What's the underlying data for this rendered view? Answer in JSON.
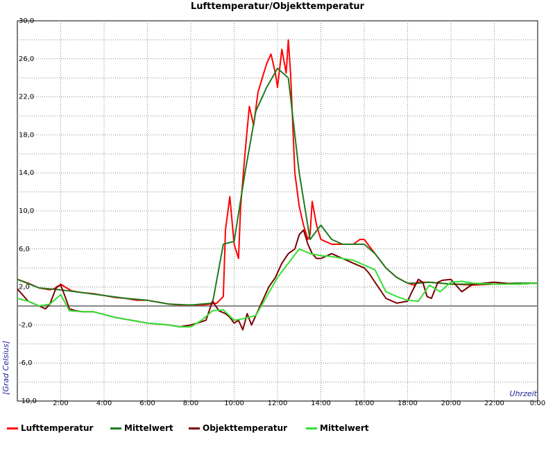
{
  "chart_data": {
    "type": "line",
    "title": "Lufttemperatur/Objekttemperatur",
    "xlabel": "Uhrzeit",
    "ylabel": "[Grad Celsius]",
    "xlim": [
      0,
      24
    ],
    "ylim": [
      -10,
      30
    ],
    "grid": true,
    "legend_position": "bottom",
    "y_ticks": [
      "-10,0",
      "-6,0",
      "-2,0",
      "2,0",
      "6,0",
      "10,0",
      "14,0",
      "18,0",
      "22,0",
      "26,0",
      "30,0"
    ],
    "x_ticks": [
      "2:00",
      "4:00",
      "6:00",
      "8:00",
      "10:00",
      "12:00",
      "14:00",
      "16:00",
      "18:00",
      "20:00",
      "22:00",
      "0:00"
    ],
    "series": [
      {
        "name": "Lufttemperatur",
        "color": "#ff0000",
        "x": [
          0,
          0.5,
          1.0,
          1.5,
          1.8,
          2.0,
          2.2,
          2.5,
          3.0,
          3.5,
          4.0,
          4.5,
          5.0,
          5.5,
          6.0,
          6.5,
          7.0,
          7.5,
          8.0,
          8.5,
          8.9,
          9.2,
          9.5,
          9.6,
          9.8,
          10.0,
          10.2,
          10.3,
          10.5,
          10.7,
          10.9,
          11.1,
          11.3,
          11.5,
          11.7,
          11.9,
          12.0,
          12.2,
          12.4,
          12.5,
          12.6,
          12.8,
          13.0,
          13.2,
          13.4,
          13.5,
          13.6,
          13.8,
          14.0,
          14.5,
          15.0,
          15.3,
          15.5,
          15.8,
          16.0,
          16.5,
          17.0,
          17.5,
          18.0,
          18.3,
          18.5,
          19.0,
          19.5,
          20.0,
          21.0,
          22.0,
          23.0,
          24.0
        ],
        "y": [
          2.8,
          2.4,
          1.9,
          1.7,
          1.9,
          2.3,
          2.0,
          1.6,
          1.4,
          1.3,
          1.1,
          0.9,
          0.8,
          0.6,
          0.6,
          0.4,
          0.2,
          0.1,
          0.1,
          0.1,
          0.2,
          0.3,
          1.0,
          8.0,
          11.5,
          6.5,
          5.0,
          10.5,
          16.0,
          21.0,
          19.0,
          22.5,
          24.0,
          25.5,
          26.5,
          24.5,
          23.0,
          27.0,
          24.5,
          28.0,
          24.5,
          14.0,
          10.5,
          8.5,
          7.0,
          7.5,
          11.0,
          8.5,
          7.0,
          6.5,
          6.5,
          6.5,
          6.5,
          7.0,
          7.0,
          5.5,
          4.0,
          3.0,
          2.4,
          2.2,
          2.5,
          2.5,
          2.4,
          2.3,
          2.2,
          2.3,
          2.4,
          2.4
        ]
      },
      {
        "name": "Mittelwert",
        "color": "#1e7a1e",
        "x": [
          0,
          1.0,
          2.0,
          3.0,
          4.0,
          5.0,
          6.0,
          7.0,
          8.0,
          9.0,
          9.5,
          10.0,
          10.5,
          11.0,
          11.5,
          12.0,
          12.5,
          13.0,
          13.5,
          14.0,
          14.5,
          15.0,
          15.5,
          16.0,
          16.5,
          17.0,
          17.5,
          18.0,
          18.5,
          19.0,
          19.5,
          20.0,
          21.0,
          22.0,
          23.0,
          24.0
        ],
        "y": [
          2.8,
          1.9,
          1.7,
          1.4,
          1.1,
          0.8,
          0.6,
          0.2,
          0.1,
          0.3,
          6.5,
          6.8,
          14.0,
          20.5,
          23.0,
          25.0,
          24.0,
          14.0,
          7.0,
          8.5,
          7.0,
          6.5,
          6.5,
          6.5,
          5.5,
          4.0,
          3.0,
          2.4,
          2.4,
          2.5,
          2.4,
          2.3,
          2.3,
          2.3,
          2.4,
          2.4
        ]
      },
      {
        "name": "Objekttemperatur",
        "color": "#7a0000",
        "x": [
          0,
          0.5,
          1.0,
          1.3,
          1.5,
          1.8,
          2.0,
          2.2,
          2.4,
          2.7,
          3.0,
          3.5,
          4.0,
          4.5,
          5.0,
          5.5,
          6.0,
          6.5,
          7.0,
          7.5,
          8.0,
          8.3,
          8.7,
          9.0,
          9.3,
          9.6,
          9.8,
          10.0,
          10.2,
          10.4,
          10.6,
          10.8,
          11.0,
          11.3,
          11.6,
          11.9,
          12.2,
          12.5,
          12.8,
          13.0,
          13.2,
          13.4,
          13.6,
          13.8,
          14.0,
          14.5,
          15.0,
          15.5,
          16.0,
          16.2,
          16.5,
          17.0,
          17.5,
          18.0,
          18.2,
          18.5,
          18.7,
          18.9,
          19.1,
          19.4,
          19.6,
          20.0,
          20.5,
          21.0,
          22.0,
          23.0,
          24.0
        ],
        "y": [
          1.8,
          0.5,
          0.0,
          -0.3,
          0.2,
          2.0,
          2.2,
          1.0,
          -0.3,
          -0.5,
          -0.6,
          -0.6,
          -0.9,
          -1.2,
          -1.4,
          -1.6,
          -1.8,
          -1.9,
          -2.0,
          -2.2,
          -2.0,
          -1.8,
          -1.5,
          0.5,
          -0.5,
          -0.8,
          -1.2,
          -1.8,
          -1.5,
          -2.5,
          -0.8,
          -2.0,
          -1.0,
          0.5,
          2.0,
          3.0,
          4.5,
          5.5,
          6.0,
          7.5,
          8.0,
          6.5,
          5.5,
          5.0,
          5.0,
          5.5,
          5.0,
          4.5,
          4.0,
          3.5,
          2.5,
          0.8,
          0.3,
          0.5,
          1.5,
          2.8,
          2.5,
          1.0,
          0.8,
          2.5,
          2.7,
          2.8,
          1.5,
          2.3,
          2.5,
          2.3,
          2.4
        ]
      },
      {
        "name": "Mittelwert",
        "color": "#33e033",
        "x": [
          0,
          0.5,
          1.0,
          1.5,
          2.0,
          2.4,
          3.0,
          3.5,
          4.0,
          4.5,
          5.0,
          5.5,
          6.0,
          6.5,
          7.0,
          7.5,
          8.0,
          8.5,
          9.0,
          9.5,
          10.0,
          10.5,
          11.0,
          11.5,
          12.0,
          12.5,
          13.0,
          13.5,
          14.0,
          14.5,
          15.0,
          15.5,
          16.0,
          16.5,
          17.0,
          17.5,
          18.0,
          18.5,
          19.0,
          19.5,
          20.0,
          20.5,
          21.0,
          22.0,
          23.0,
          24.0
        ],
        "y": [
          0.8,
          0.5,
          0.0,
          0.2,
          1.2,
          -0.5,
          -0.6,
          -0.6,
          -0.9,
          -1.2,
          -1.4,
          -1.6,
          -1.8,
          -1.9,
          -2.0,
          -2.2,
          -2.2,
          -1.5,
          -0.5,
          -0.4,
          -1.5,
          -1.3,
          -1.0,
          1.0,
          3.0,
          4.5,
          6.0,
          5.5,
          5.3,
          5.2,
          5.0,
          4.8,
          4.3,
          3.8,
          1.5,
          1.0,
          0.6,
          0.5,
          2.2,
          1.5,
          2.5,
          2.6,
          2.4,
          2.3,
          2.3,
          2.4
        ]
      }
    ]
  },
  "legend": [
    {
      "label": "Lufttemperatur",
      "color": "#ff0000"
    },
    {
      "label": "Mittelwert",
      "color": "#1e7a1e"
    },
    {
      "label": "Objekttemperatur",
      "color": "#7a0000"
    },
    {
      "label": "Mittelwert",
      "color": "#33e033"
    }
  ]
}
